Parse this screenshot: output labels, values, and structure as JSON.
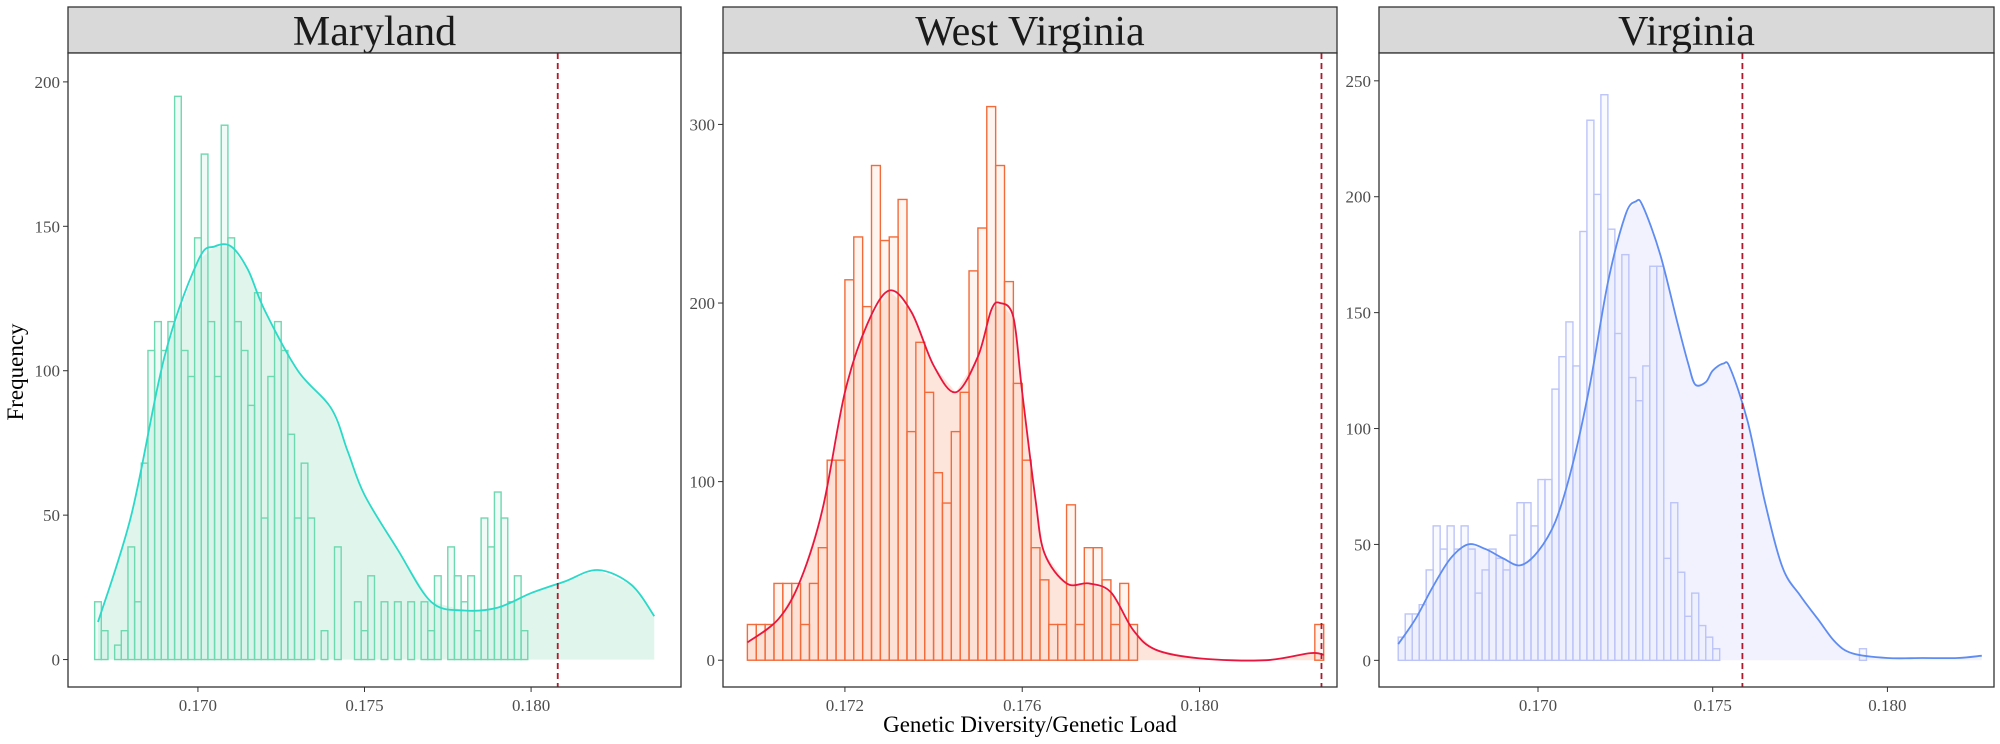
{
  "chart_data": {
    "type": "histogram",
    "xlabel": "Genetic Diversity/Genetic Load",
    "ylabel": "Frequency",
    "reference_line_color": "#b2182b",
    "panels": [
      {
        "title": "Maryland",
        "bar_stroke": "#6ed8b0",
        "bar_fill": "#c4f1e2",
        "curve_color": "#2bd9c8",
        "curve_fill": "#d6f3e6",
        "bin_start": 0.1669,
        "bin_width": 0.0002,
        "values": [
          20,
          10,
          0,
          5,
          10,
          39,
          20,
          68,
          107,
          117,
          107,
          117,
          195,
          107,
          98,
          146,
          175,
          117,
          98,
          185,
          146,
          117,
          107,
          88,
          127,
          49,
          98,
          117,
          107,
          78,
          49,
          68,
          49,
          0,
          10,
          0,
          39,
          0,
          0,
          20,
          10,
          29,
          0,
          20,
          0,
          20,
          0,
          20,
          0,
          20,
          10,
          29,
          0,
          39,
          29,
          20,
          29,
          10,
          49,
          39,
          58,
          49,
          20,
          29,
          10
        ],
        "curve": [
          [
            0.167,
            13
          ],
          [
            0.168,
            50
          ],
          [
            0.169,
            105
          ],
          [
            0.17,
            138
          ],
          [
            0.1705,
            143
          ],
          [
            0.171,
            143
          ],
          [
            0.1715,
            135
          ],
          [
            0.172,
            121
          ],
          [
            0.173,
            100
          ],
          [
            0.174,
            87
          ],
          [
            0.1745,
            72
          ],
          [
            0.175,
            57
          ],
          [
            0.176,
            38
          ],
          [
            0.177,
            20
          ],
          [
            0.178,
            17
          ],
          [
            0.179,
            18
          ],
          [
            0.18,
            23
          ],
          [
            0.181,
            27
          ],
          [
            0.182,
            31
          ],
          [
            0.183,
            26
          ],
          [
            0.1837,
            15
          ]
        ],
        "ref_x": 0.1808,
        "xlim": [
          0.1661,
          0.1845
        ],
        "ylim": [
          -9.5,
          210
        ],
        "xticks": [
          "0.170",
          "0.175",
          "0.180"
        ],
        "xtick_values": [
          0.17,
          0.175,
          0.18
        ],
        "yticks": [
          "0",
          "50",
          "100",
          "150",
          "200"
        ],
        "ytick_values": [
          0,
          50,
          100,
          150,
          200
        ]
      },
      {
        "title": "West Virginia",
        "bar_stroke": "#f26b3a",
        "bar_fill": "#fdd9c7",
        "curve_color": "#e8163e",
        "curve_fill": "#fddccf",
        "bin_start": 0.1698,
        "bin_width": 0.0002,
        "values": [
          20,
          20,
          20,
          43,
          43,
          43,
          20,
          43,
          63,
          112,
          112,
          213,
          237,
          198,
          277,
          235,
          237,
          258,
          128,
          178,
          150,
          105,
          88,
          128,
          150,
          218,
          242,
          310,
          277,
          212,
          155,
          112,
          63,
          45,
          20,
          20,
          87,
          20,
          63,
          63,
          45,
          20,
          43,
          20,
          0,
          0,
          0,
          0,
          0,
          0,
          0,
          0,
          0,
          0,
          0,
          0,
          0,
          0,
          0,
          0,
          0,
          0,
          0,
          0,
          20
        ],
        "curve": [
          [
            0.1698,
            10
          ],
          [
            0.1705,
            23
          ],
          [
            0.171,
            45
          ],
          [
            0.1715,
            85
          ],
          [
            0.172,
            150
          ],
          [
            0.1725,
            188
          ],
          [
            0.173,
            207
          ],
          [
            0.1735,
            195
          ],
          [
            0.174,
            165
          ],
          [
            0.1745,
            150
          ],
          [
            0.175,
            170
          ],
          [
            0.1753,
            196
          ],
          [
            0.1755,
            200
          ],
          [
            0.1758,
            192
          ],
          [
            0.176,
            150
          ],
          [
            0.1763,
            90
          ],
          [
            0.1765,
            60
          ],
          [
            0.177,
            43
          ],
          [
            0.1775,
            43
          ],
          [
            0.178,
            38
          ],
          [
            0.1785,
            17
          ],
          [
            0.179,
            6
          ],
          [
            0.18,
            1
          ],
          [
            0.1815,
            0
          ],
          [
            0.1825,
            4
          ],
          [
            0.1828,
            3
          ]
        ],
        "ref_x": 0.18275,
        "xlim": [
          0.16925,
          0.1831
        ],
        "ylim": [
          -15,
          340
        ],
        "xticks": [
          "0.172",
          "0.176",
          "0.180"
        ],
        "xtick_values": [
          0.172,
          0.176,
          0.18
        ],
        "yticks": [
          "0",
          "100",
          "200",
          "300"
        ],
        "ytick_values": [
          0,
          100,
          200,
          300
        ]
      },
      {
        "title": "Virginia",
        "bar_stroke": "#bcc4f8",
        "bar_fill": "#e8ebfd",
        "curve_color": "#5f8cf0",
        "curve_fill": "#eceefd",
        "bin_start": 0.166,
        "bin_width": 0.0002,
        "values": [
          10,
          20,
          20,
          24,
          39,
          58,
          48,
          58,
          48,
          58,
          48,
          29,
          39,
          48,
          44,
          39,
          54,
          68,
          68,
          58,
          78,
          78,
          117,
          131,
          146,
          127,
          185,
          233,
          201,
          244,
          186,
          141,
          175,
          122,
          112,
          127,
          170,
          170,
          44,
          68,
          38,
          19,
          29,
          15,
          10,
          5,
          0,
          0,
          0,
          0,
          0,
          0,
          0,
          0,
          0,
          0,
          0,
          0,
          0,
          0,
          0,
          0,
          0,
          0,
          0,
          0,
          5
        ],
        "curve": [
          [
            0.166,
            7
          ],
          [
            0.1665,
            18
          ],
          [
            0.167,
            32
          ],
          [
            0.1675,
            44
          ],
          [
            0.168,
            50
          ],
          [
            0.1685,
            48
          ],
          [
            0.169,
            44
          ],
          [
            0.1695,
            41
          ],
          [
            0.17,
            47
          ],
          [
            0.1705,
            60
          ],
          [
            0.171,
            85
          ],
          [
            0.1715,
            120
          ],
          [
            0.172,
            163
          ],
          [
            0.1725,
            192
          ],
          [
            0.1728,
            198
          ],
          [
            0.173,
            196
          ],
          [
            0.1735,
            175
          ],
          [
            0.174,
            145
          ],
          [
            0.1743,
            128
          ],
          [
            0.1745,
            119
          ],
          [
            0.1748,
            120
          ],
          [
            0.175,
            125
          ],
          [
            0.1753,
            128
          ],
          [
            0.1755,
            126
          ],
          [
            0.176,
            103
          ],
          [
            0.1765,
            68
          ],
          [
            0.177,
            40
          ],
          [
            0.1775,
            28
          ],
          [
            0.178,
            18
          ],
          [
            0.1785,
            8
          ],
          [
            0.179,
            3
          ],
          [
            0.18,
            1
          ],
          [
            0.181,
            1
          ],
          [
            0.182,
            1
          ],
          [
            0.1827,
            2
          ]
        ],
        "ref_x": 0.17585,
        "xlim": [
          0.16545,
          0.18305
        ],
        "ylim": [
          -11.5,
          262
        ],
        "xticks": [
          "0.170",
          "0.175",
          "0.180"
        ],
        "xtick_values": [
          0.17,
          0.175,
          0.18
        ],
        "yticks": [
          "0",
          "50",
          "100",
          "150",
          "200",
          "250"
        ],
        "ytick_values": [
          0,
          50,
          100,
          150,
          200,
          250
        ]
      }
    ]
  }
}
